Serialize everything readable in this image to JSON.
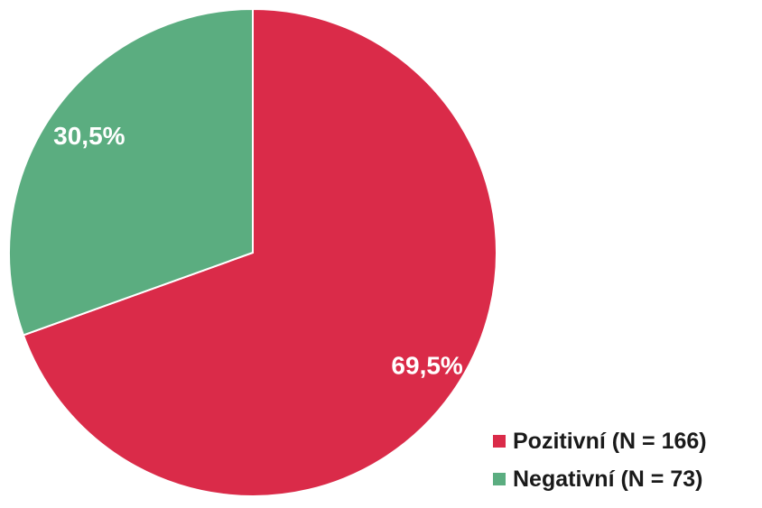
{
  "chart_data": {
    "type": "pie",
    "title": "",
    "start_angle_deg": 0,
    "direction": "clockwise",
    "legend_position": "bottom-right",
    "slices": [
      {
        "name": "Pozitivní (N = 166)",
        "value": 69.5,
        "label": "69,5%",
        "color": "#da2b49"
      },
      {
        "name": "Negativní (N = 73)",
        "value": 30.5,
        "label": "30,5%",
        "color": "#5bad80"
      }
    ]
  }
}
